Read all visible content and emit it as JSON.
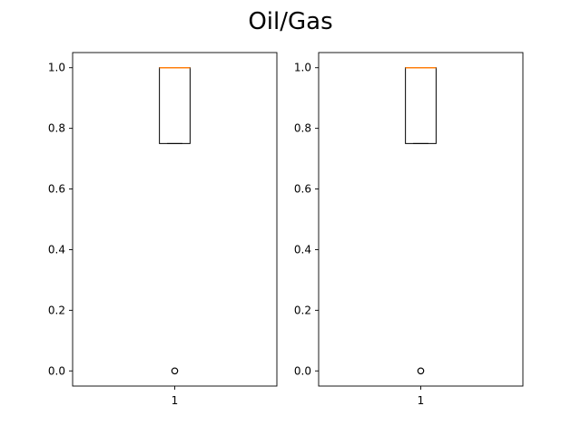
{
  "figure": {
    "title": "Oil/Gas"
  },
  "chart_data": [
    {
      "type": "box",
      "categories": [
        "1"
      ],
      "boxes": [
        {
          "whisker_low": 0.75,
          "q1": 0.75,
          "median": 1.0,
          "q3": 1.0,
          "whisker_high": 1.0,
          "outliers": [
            0.0
          ]
        }
      ],
      "ylim": [
        -0.05,
        1.05
      ],
      "yticks": [
        "0.0",
        "0.2",
        "0.4",
        "0.6",
        "0.8",
        "1.0"
      ],
      "xlabel": "",
      "ylabel": "",
      "colors": {
        "box": "#000000",
        "median": "#ff7f0e",
        "outlier": "#000000"
      }
    },
    {
      "type": "box",
      "categories": [
        "1"
      ],
      "boxes": [
        {
          "whisker_low": 0.75,
          "q1": 0.75,
          "median": 1.0,
          "q3": 1.0,
          "whisker_high": 1.0,
          "outliers": [
            0.0
          ]
        }
      ],
      "ylim": [
        -0.05,
        1.05
      ],
      "yticks": [
        "0.0",
        "0.2",
        "0.4",
        "0.6",
        "0.8",
        "1.0"
      ],
      "xlabel": "",
      "ylabel": "",
      "colors": {
        "box": "#000000",
        "median": "#ff7f0e",
        "outlier": "#000000"
      }
    }
  ]
}
